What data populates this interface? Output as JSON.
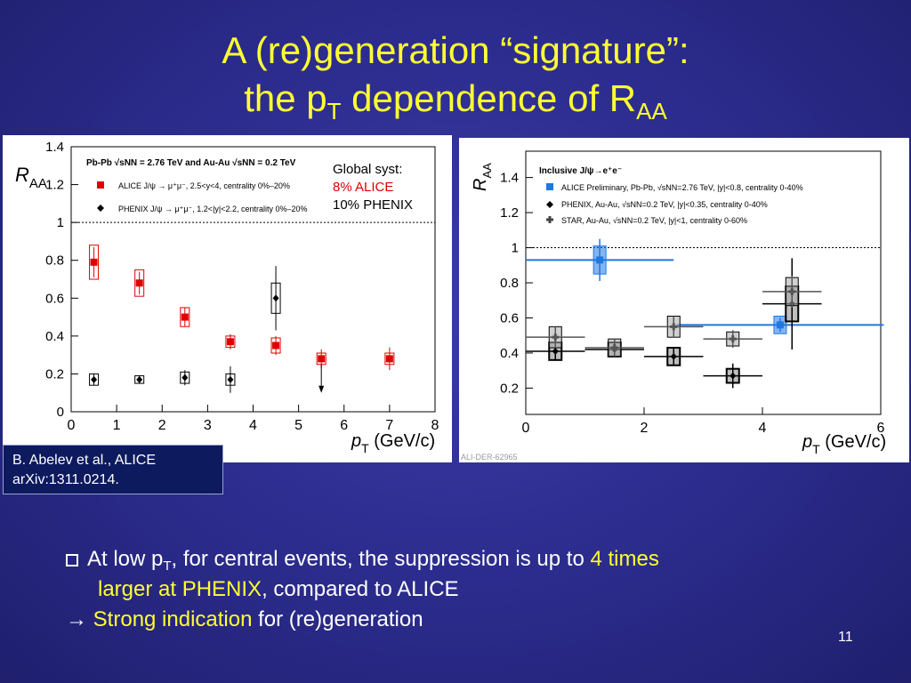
{
  "slide": {
    "title_line1": "A (re)generation “signature”:",
    "title_line2_a": "the p",
    "title_line2_sub1": "T",
    "title_line2_b": " dependence of R",
    "title_line2_sub2": "AA",
    "global_syst_title": "Global syst:",
    "global_syst_alice": "8% ALICE",
    "global_syst_phenix": "10% PHENIX",
    "reference_line1": "B. Abelev et al., ALICE",
    "reference_line2": "arXiv:1311.0214.",
    "bullet1_a": "At low p",
    "bullet1_sub": "T",
    "bullet1_b": ", for central events, the suppression is up to ",
    "bullet1_highlight": "4 times",
    "bullet1_line2_highlight": "larger at PHENIX",
    "bullet1_line2_rest": ", compared to ALICE",
    "bullet2_arrow": "→",
    "bullet2_highlight": "Strong indication",
    "bullet2_rest": " for (re)generation",
    "slide_number": "11",
    "colors": {
      "title": "#ffff33",
      "highlight": "#ffff33",
      "alice_red": "#e00000",
      "alice_blue": "#1f78e0"
    }
  },
  "chart_data": [
    {
      "type": "scatter",
      "ylabel_main": "R",
      "ylabel_sub": "AA",
      "xlabel_main": "p",
      "xlabel_sub": "T",
      "xlabel_unit": " (GeV/c)",
      "xlim": [
        0,
        8
      ],
      "ylim": [
        0,
        1.4
      ],
      "xticks": [
        "0",
        "1",
        "2",
        "3",
        "4",
        "5",
        "6",
        "7",
        "8"
      ],
      "yticks": [
        "0",
        "0.2",
        "0.4",
        "0.6",
        "0.8",
        "1",
        "1.2",
        "1.4"
      ],
      "reference_line": 1,
      "legend_header": "Pb-Pb √sNN = 2.76 TeV and Au-Au √sNN = 0.2 TeV",
      "series": [
        {
          "name": "ALICE J/ψ → μ⁺μ⁻, 2.5<y<4, centrality 0%–20%",
          "color": "#e00000",
          "marker": "square",
          "x": [
            0.5,
            1.5,
            2.5,
            3.5,
            4.5,
            5.5,
            7.0
          ],
          "y": [
            0.79,
            0.68,
            0.5,
            0.37,
            0.35,
            0.28,
            0.28
          ],
          "err": [
            0.08,
            0.06,
            0.05,
            0.04,
            0.05,
            0.05,
            0.06
          ],
          "syst": [
            0.09,
            0.07,
            0.05,
            0.03,
            0.04,
            0.03,
            0.03
          ]
        },
        {
          "name": "PHENIX J/ψ → μ⁺μ⁻, 1.2<|y|<2.2, centrality 0%–20%",
          "color": "#000000",
          "marker": "diamond",
          "x": [
            0.5,
            1.5,
            2.5,
            3.5,
            4.5
          ],
          "y": [
            0.17,
            0.17,
            0.18,
            0.17,
            0.6
          ],
          "err": [
            0.03,
            0.02,
            0.04,
            0.07,
            0.17
          ],
          "syst": [
            0.03,
            0.02,
            0.03,
            0.03,
            0.08
          ],
          "upper_limit_x": 5.5,
          "upper_limit_y": 0.25
        }
      ]
    },
    {
      "type": "scatter",
      "ylabel_main": "R",
      "ylabel_sub": "AA",
      "xlabel_main": "p",
      "xlabel_sub": "T",
      "xlabel_unit": " (GeV/c)",
      "xlim": [
        0,
        6
      ],
      "ylim": [
        0.05,
        1.55
      ],
      "xticks": [
        "0",
        "2",
        "4",
        "6"
      ],
      "yticks": [
        "0.2",
        "0.4",
        "0.6",
        "0.8",
        "1",
        "1.2",
        "1.4"
      ],
      "reference_line": 1,
      "legend_header": "Inclusive J/ψ→e⁺e⁻",
      "watermark": "ALI-DER-62965",
      "series": [
        {
          "name": "ALICE Preliminary, Pb-Pb, √sNN=2.76 TeV, |y|<0.8, centrality 0-40%",
          "color": "#1f78e0",
          "marker": "square",
          "x": [
            1.25,
            4.3
          ],
          "y": [
            0.93,
            0.56
          ],
          "xerr": [
            1.25,
            1.75
          ],
          "err": [
            0.12,
            0.04
          ],
          "syst": [
            0.08,
            0.05
          ]
        },
        {
          "name": "PHENIX, Au-Au, √sNN=0.2 TeV, |y|<0.35, centrality 0-40%",
          "color": "#000000",
          "marker": "diamond",
          "x": [
            0.5,
            1.5,
            2.5,
            3.5,
            4.5
          ],
          "y": [
            0.41,
            0.42,
            0.38,
            0.27,
            0.68
          ],
          "xerr": [
            0.5,
            0.5,
            0.5,
            0.5,
            0.5
          ],
          "err": [
            0.05,
            0.03,
            0.05,
            0.07,
            0.26
          ],
          "syst": [
            0.05,
            0.04,
            0.05,
            0.04,
            0.1
          ]
        },
        {
          "name": "STAR, Au-Au, √sNN=0.2 TeV, |y|<1, centrality 0-60%",
          "color": "#555555",
          "marker": "cross",
          "x": [
            0.5,
            1.5,
            2.5,
            3.5,
            4.5
          ],
          "y": [
            0.49,
            0.43,
            0.55,
            0.48,
            0.75
          ],
          "xerr": [
            0.5,
            0.5,
            0.5,
            0.5,
            0.5
          ],
          "err": [
            0.06,
            0.05,
            0.06,
            0.05,
            0.09
          ],
          "syst": [
            0.06,
            0.05,
            0.06,
            0.04,
            0.08
          ]
        }
      ]
    }
  ]
}
